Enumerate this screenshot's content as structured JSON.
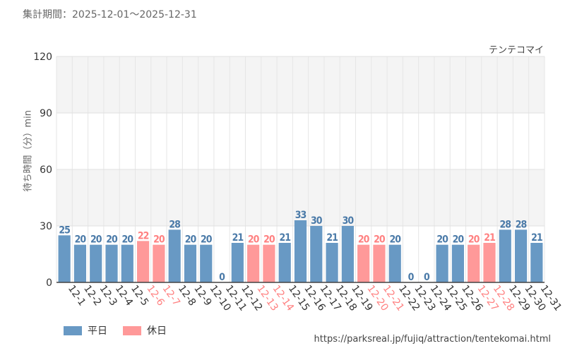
{
  "period_label": "集計期間：2025-12-01～2025-12-31",
  "attraction_name": "テンテコマイ",
  "source_url": "https://parksreal.jp/fujiq/attraction/tentekomai.html",
  "colors": {
    "weekday": "#6899c4",
    "holiday": "#ff9999",
    "weekday_text": "#4a7aa8",
    "holiday_text": "#ff8080"
  },
  "legend": {
    "weekday": "平日",
    "holiday": "休日"
  },
  "chart_data": {
    "type": "bar",
    "ylabel": "待ち時間（分）min",
    "xlabel": "",
    "ylim": [
      0,
      120
    ],
    "yticks": [
      0,
      30,
      60,
      90,
      120
    ],
    "categories": [
      "12-1",
      "12-2",
      "12-3",
      "12-4",
      "12-5",
      "12-6",
      "12-7",
      "12-8",
      "12-9",
      "12-10",
      "12-11",
      "12-12",
      "12-13",
      "12-14",
      "12-15",
      "12-16",
      "12-17",
      "12-18",
      "12-19",
      "12-20",
      "12-21",
      "12-22",
      "12-23",
      "12-24",
      "12-25",
      "12-26",
      "12-27",
      "12-28",
      "12-29",
      "12-30",
      "12-31"
    ],
    "values": [
      25,
      20,
      20,
      20,
      20,
      22,
      20,
      28,
      20,
      20,
      0,
      21,
      20,
      20,
      21,
      33,
      30,
      21,
      30,
      20,
      20,
      20,
      0,
      0,
      20,
      20,
      20,
      21,
      28,
      28,
      21
    ],
    "day_type": [
      "weekday",
      "weekday",
      "weekday",
      "weekday",
      "weekday",
      "holiday",
      "holiday",
      "weekday",
      "weekday",
      "weekday",
      "weekday",
      "weekday",
      "holiday",
      "holiday",
      "weekday",
      "weekday",
      "weekday",
      "weekday",
      "weekday",
      "holiday",
      "holiday",
      "weekday",
      "weekday",
      "weekday",
      "weekday",
      "weekday",
      "holiday",
      "holiday",
      "weekday",
      "weekday",
      "weekday"
    ]
  }
}
